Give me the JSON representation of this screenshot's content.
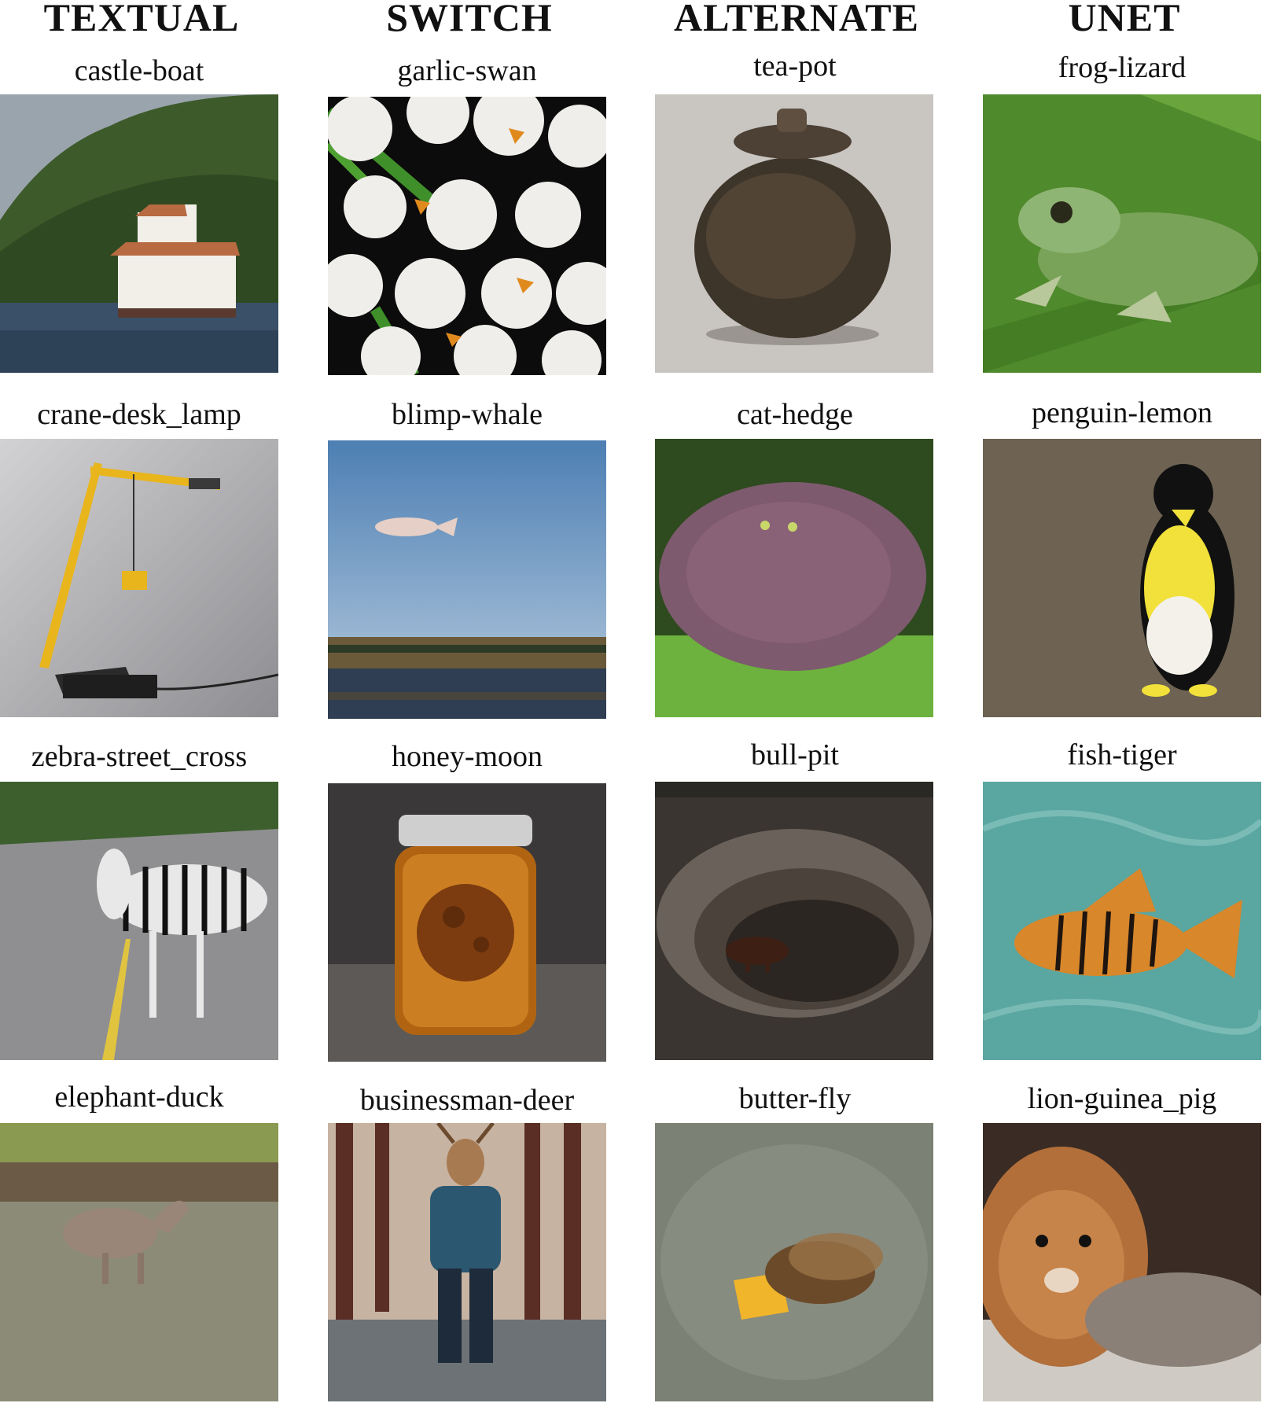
{
  "columns": [
    "TEXTUAL",
    "SWITCH",
    "ALTERNATE",
    "UNET"
  ],
  "rows": [
    [
      "castle-boat",
      "garlic-swan",
      "tea-pot",
      "frog-lizard"
    ],
    [
      "crane-desk_lamp",
      "blimp-whale",
      "cat-hedge",
      "penguin-lemon"
    ],
    [
      "zebra-street_cross",
      "honey-moon",
      "bull-pit",
      "fish-tiger"
    ],
    [
      "elephant-duck",
      "businessman-deer",
      "butter-fly",
      "lion-guinea_pig"
    ]
  ]
}
